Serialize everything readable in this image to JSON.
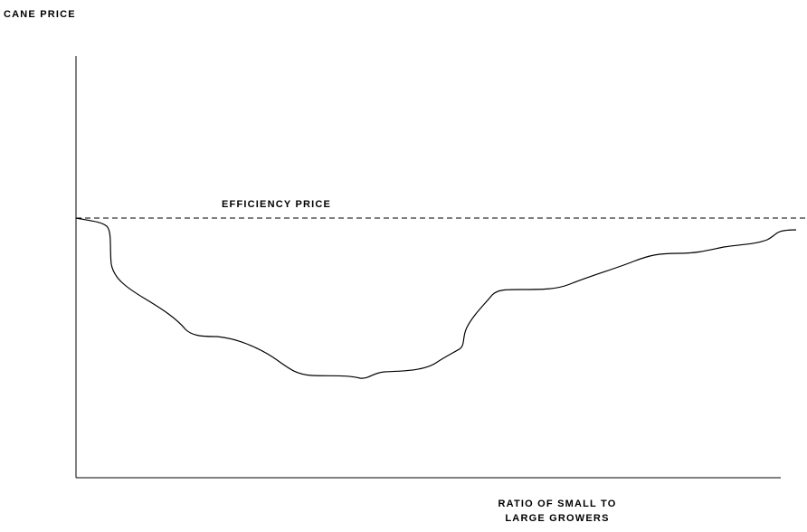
{
  "diagram": {
    "y_axis_label": "CANE PRICE",
    "reference_label": "EFFICIENCY PRICE",
    "x_axis_label": [
      "RATIO OF SMALL TO",
      "LARGE GROWERS"
    ]
  }
}
